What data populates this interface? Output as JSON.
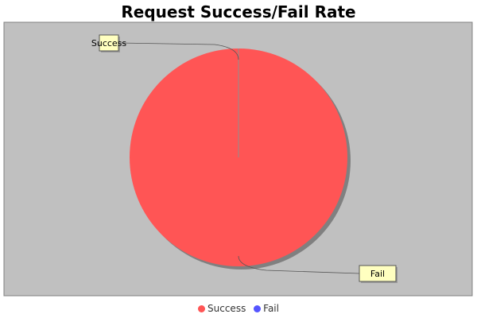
{
  "colors": {
    "plot_background": "#c0c0c0",
    "plot_border": "#808080",
    "shadow": "#808080",
    "label_fill": "#ffffc0",
    "label_border": "#555555",
    "leader_line": "#555555"
  },
  "chart_data": {
    "type": "pie",
    "title": "Request Success/Fail Rate",
    "series": [
      {
        "name": "Success",
        "value": 100,
        "color": "#ff5555"
      },
      {
        "name": "Fail",
        "value": 0,
        "color": "#5555ff"
      }
    ],
    "legend": {
      "position": "bottom",
      "items": [
        {
          "label": "Success",
          "color": "#ff5555"
        },
        {
          "label": "Fail",
          "color": "#5555ff"
        }
      ]
    }
  }
}
